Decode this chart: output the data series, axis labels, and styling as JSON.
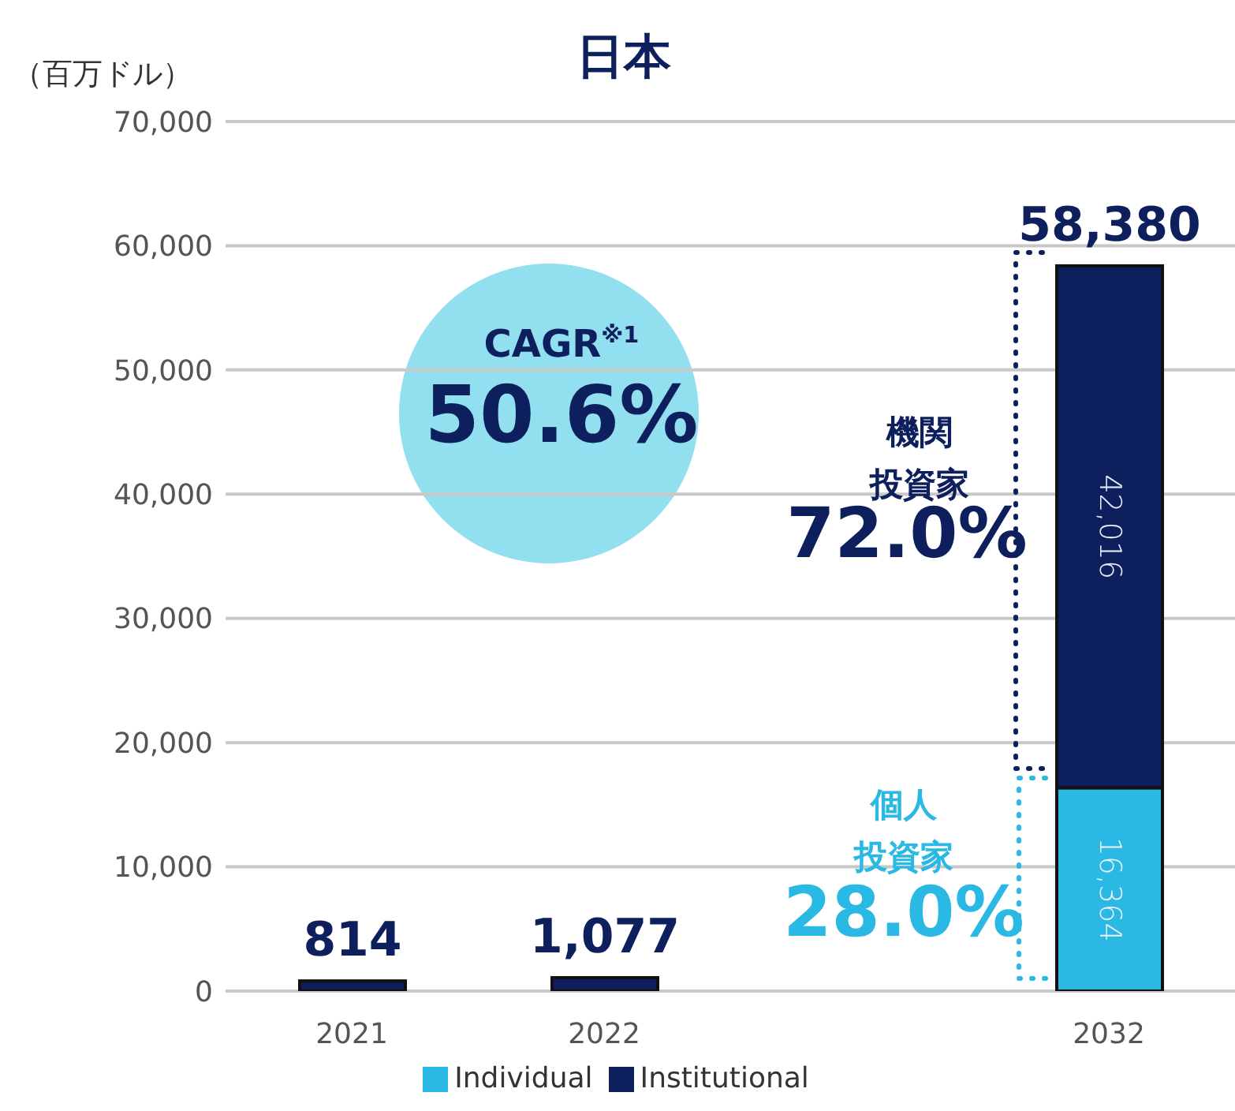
{
  "chart_data": {
    "type": "bar",
    "title": "日本",
    "ylabel": "（百万ドル）",
    "categories": [
      "2021",
      "2022",
      null,
      "2032"
    ],
    "series": [
      {
        "name": "Individual",
        "color": "#29b9e4",
        "values": [
          null,
          null,
          null,
          16364
        ],
        "value_labels": [
          null,
          null,
          null,
          "16,364"
        ]
      },
      {
        "name": "Institutional",
        "color": "#0d1f5c",
        "values": [
          814,
          1077,
          null,
          42016
        ],
        "value_labels": [
          null,
          null,
          null,
          "42,016"
        ]
      }
    ],
    "stacked": true,
    "totals": [
      "814",
      "1,077",
      null,
      "58,380"
    ],
    "ylim": [
      0,
      70000
    ],
    "yticks": [
      {
        "value": 0,
        "label": "0"
      },
      {
        "value": 10000,
        "label": "10,000"
      },
      {
        "value": 20000,
        "label": "20,000"
      },
      {
        "value": 30000,
        "label": "30,000"
      },
      {
        "value": 40000,
        "label": "40,000"
      },
      {
        "value": 50000,
        "label": "50,000"
      },
      {
        "value": 60000,
        "label": "60,000"
      },
      {
        "value": 70000,
        "label": "70,000"
      }
    ],
    "grid": "y",
    "legend": "bottom",
    "annotations": [
      "CAGR$^{※1}$",
      "50.6%",
      "機関",
      "投資家",
      "72.0%",
      "個人",
      "投資家",
      "28.0%"
    ]
  }
}
